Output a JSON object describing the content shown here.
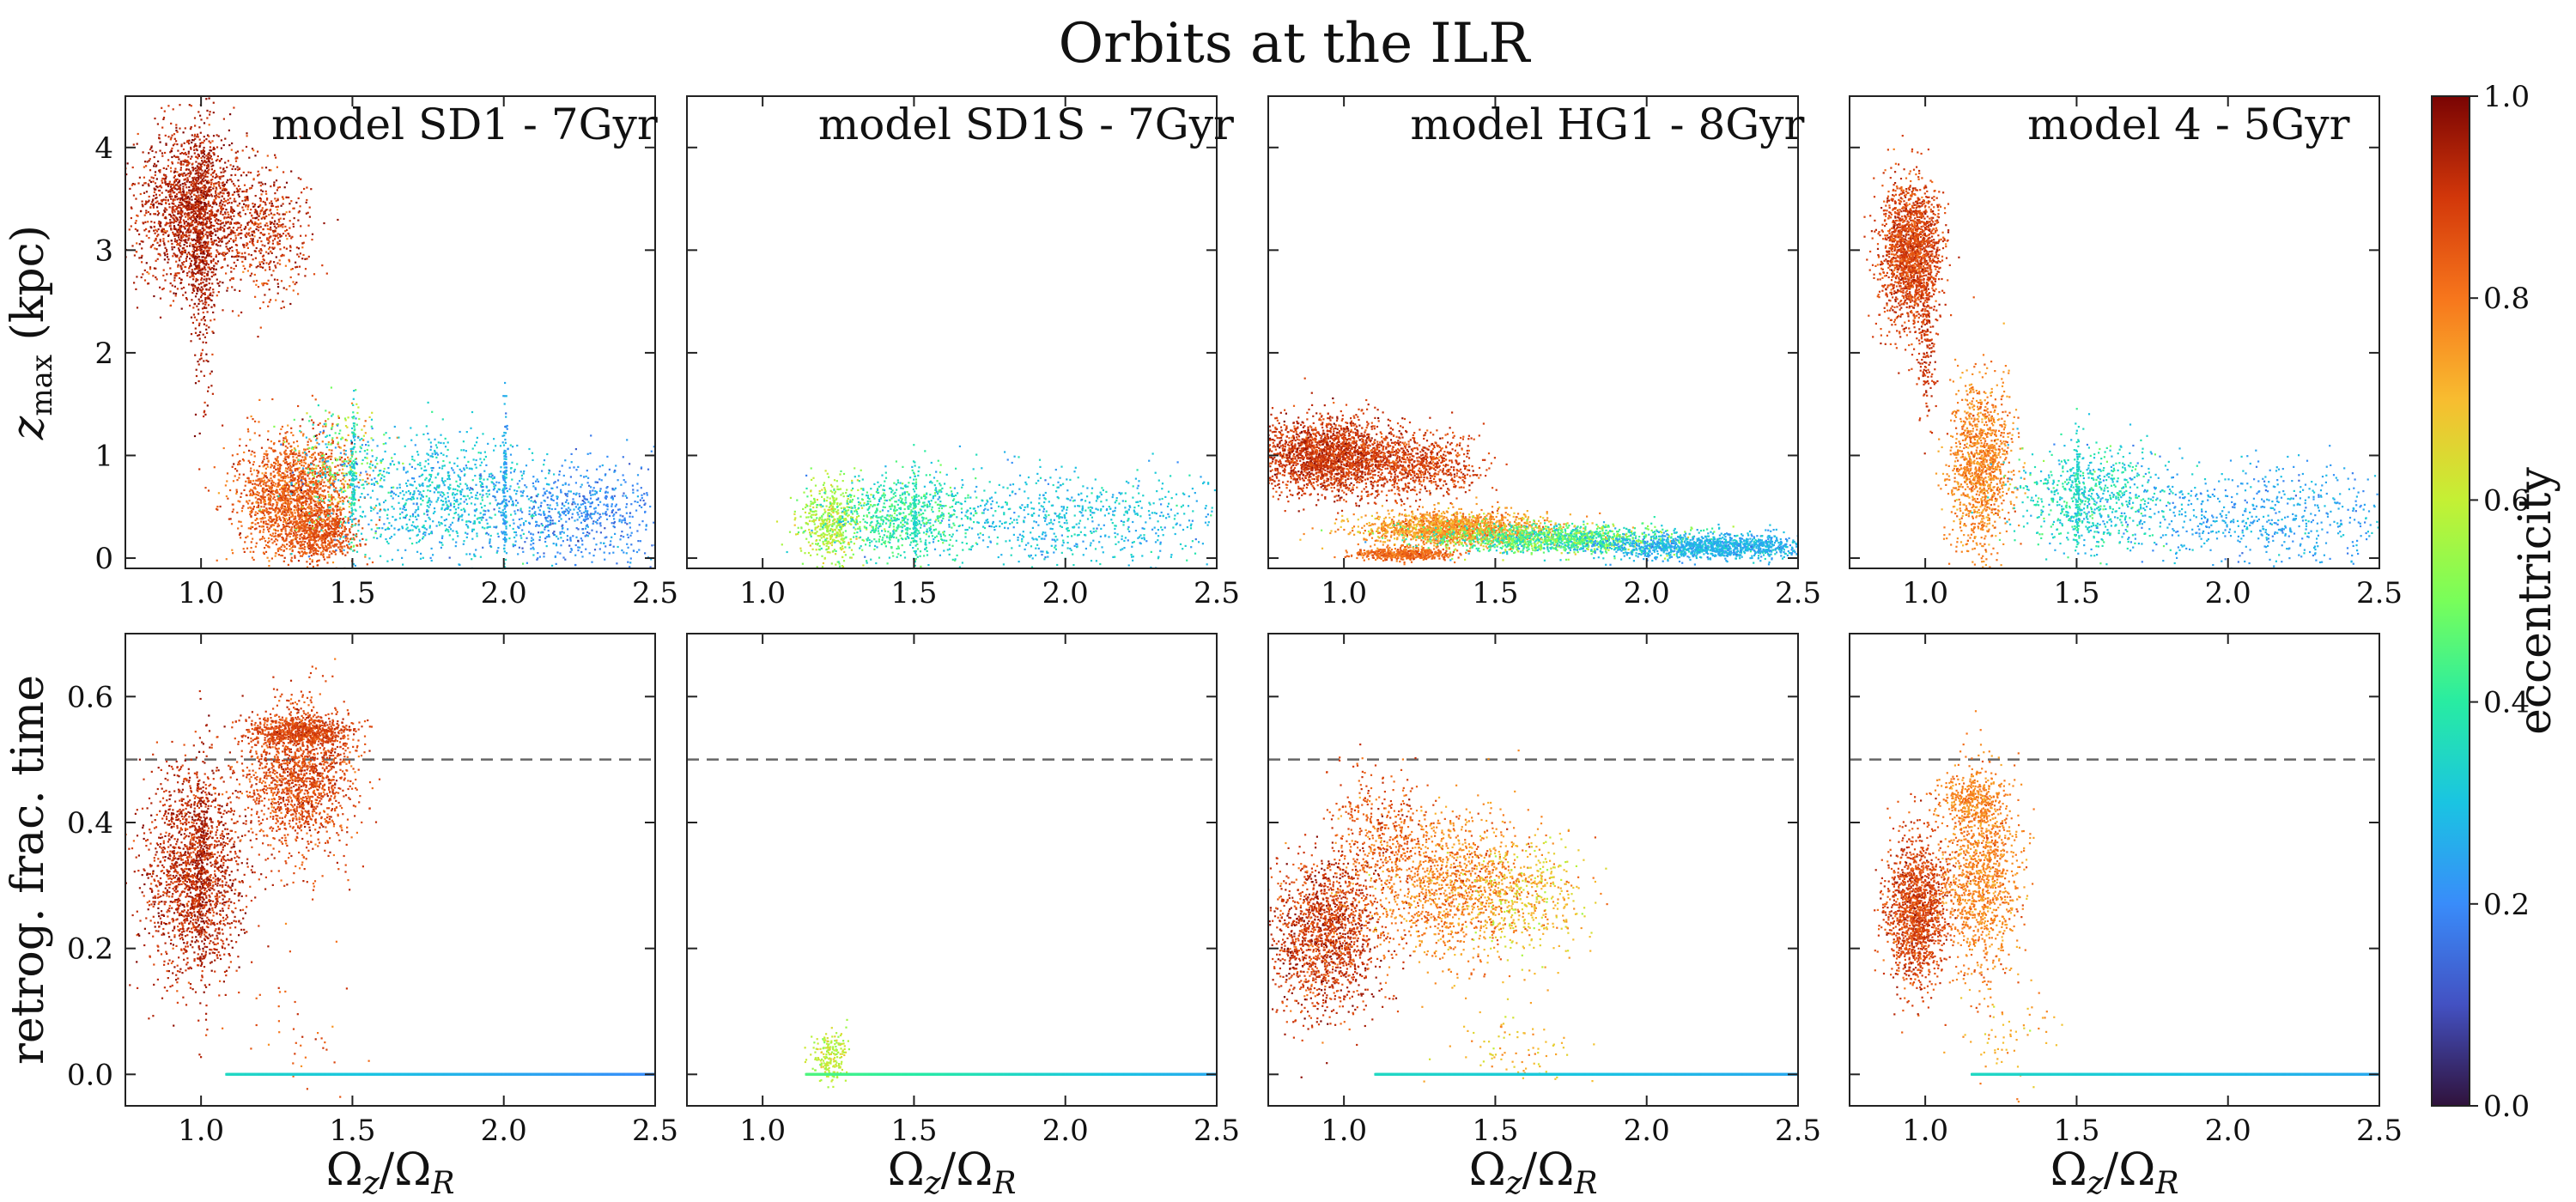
{
  "figure_title": "Orbits at the ILR",
  "colorbar": {
    "label": "eccentricity",
    "range": [
      0.0,
      1.0
    ],
    "ticks": [
      "0.0",
      "0.2",
      "0.4",
      "0.6",
      "0.8",
      "1.0"
    ],
    "colormap": "turbo"
  },
  "chart_data": [
    {
      "type": "scatter",
      "title": "model SD1 - 7Gyr",
      "row": "top",
      "xlabel": "",
      "ylabel": "z_max (kpc)",
      "xlim": [
        0.75,
        2.5
      ],
      "ylim": [
        -0.1,
        4.5
      ],
      "xticks": [
        "1.0",
        "1.5",
        "2.0",
        "2.5"
      ],
      "yticks": [
        "0",
        "1",
        "2",
        "3",
        "4"
      ],
      "clusters": [
        {
          "x": [
            0.97,
            0.09
          ],
          "y": [
            3.4,
            0.4
          ],
          "e": [
            0.93,
            0.04
          ],
          "n": 1800
        },
        {
          "x": [
            1.0,
            0.02
          ],
          "y": [
            3.0,
            0.6
          ],
          "e": [
            0.95,
            0.03
          ],
          "n": 400
        },
        {
          "x": [
            1.22,
            0.07
          ],
          "y": [
            3.2,
            0.3
          ],
          "e": [
            0.9,
            0.05
          ],
          "n": 500
        },
        {
          "x": [
            1.3,
            0.09
          ],
          "y": [
            0.6,
            0.3
          ],
          "e": [
            0.84,
            0.04
          ],
          "n": 1800
        },
        {
          "x": [
            1.4,
            0.06
          ],
          "y": [
            0.25,
            0.12
          ],
          "e": [
            0.86,
            0.03
          ],
          "n": 500
        },
        {
          "x": [
            1.45,
            0.08
          ],
          "y": [
            0.95,
            0.3
          ],
          "e": [
            0.5,
            0.2
          ],
          "n": 300
        },
        {
          "x": [
            1.8,
            0.18
          ],
          "y": [
            0.6,
            0.3
          ],
          "e": [
            0.3,
            0.05
          ],
          "n": 900
        },
        {
          "x": [
            2.25,
            0.17
          ],
          "y": [
            0.45,
            0.25
          ],
          "e": [
            0.2,
            0.04
          ],
          "n": 700
        },
        {
          "x": [
            1.5,
            0.004
          ],
          "y": [
            0.8,
            0.35
          ],
          "e": [
            0.35,
            0.05
          ],
          "n": 120
        },
        {
          "x": [
            2.0,
            0.004
          ],
          "y": [
            0.7,
            0.4
          ],
          "e": [
            0.25,
            0.04
          ],
          "n": 120
        }
      ]
    },
    {
      "type": "scatter",
      "title": "model SD1S - 7Gyr",
      "row": "top",
      "xlabel": "",
      "ylabel": "",
      "xlim": [
        0.75,
        2.5
      ],
      "ylim": [
        -0.1,
        4.5
      ],
      "xticks": [
        "1.0",
        "1.5",
        "2.0",
        "2.5"
      ],
      "yticks": [],
      "clusters": [
        {
          "x": [
            1.22,
            0.05
          ],
          "y": [
            0.35,
            0.2
          ],
          "e": [
            0.58,
            0.05
          ],
          "n": 500
        },
        {
          "x": [
            1.45,
            0.12
          ],
          "y": [
            0.4,
            0.2
          ],
          "e": [
            0.4,
            0.06
          ],
          "n": 700
        },
        {
          "x": [
            2.0,
            0.3
          ],
          "y": [
            0.4,
            0.25
          ],
          "e": [
            0.3,
            0.05
          ],
          "n": 800
        },
        {
          "x": [
            1.5,
            0.004
          ],
          "y": [
            0.5,
            0.25
          ],
          "e": [
            0.35,
            0.04
          ],
          "n": 100
        }
      ]
    },
    {
      "type": "scatter",
      "title": "model HG1 - 8Gyr",
      "row": "top",
      "xlabel": "",
      "ylabel": "",
      "xlim": [
        0.75,
        2.5
      ],
      "ylim": [
        -0.1,
        4.5
      ],
      "xticks": [
        "1.0",
        "1.5",
        "2.0",
        "2.5"
      ],
      "yticks": [],
      "clusters": [
        {
          "x": [
            0.95,
            0.12
          ],
          "y": [
            1.0,
            0.18
          ],
          "e": [
            0.9,
            0.04
          ],
          "n": 2200
        },
        {
          "x": [
            1.25,
            0.1
          ],
          "y": [
            0.9,
            0.15
          ],
          "e": [
            0.88,
            0.04
          ],
          "n": 700
        },
        {
          "x": [
            1.35,
            0.15
          ],
          "y": [
            0.3,
            0.08
          ],
          "e": [
            0.75,
            0.05
          ],
          "n": 1600
        },
        {
          "x": [
            1.7,
            0.2
          ],
          "y": [
            0.2,
            0.07
          ],
          "e": [
            0.45,
            0.1
          ],
          "n": 1400
        },
        {
          "x": [
            2.2,
            0.18
          ],
          "y": [
            0.12,
            0.06
          ],
          "e": [
            0.27,
            0.04
          ],
          "n": 1300
        },
        {
          "x": [
            1.2,
            0.08
          ],
          "y": [
            0.05,
            0.03
          ],
          "e": [
            0.82,
            0.03
          ],
          "n": 500
        }
      ]
    },
    {
      "type": "scatter",
      "title": "model 4 - 5Gyr",
      "row": "top",
      "xlabel": "",
      "ylabel": "",
      "xlim": [
        0.75,
        2.5
      ],
      "ylim": [
        -0.1,
        4.5
      ],
      "xticks": [
        "1.0",
        "1.5",
        "2.0",
        "2.5"
      ],
      "yticks": [],
      "clusters": [
        {
          "x": [
            0.95,
            0.05
          ],
          "y": [
            3.0,
            0.35
          ],
          "e": [
            0.88,
            0.04
          ],
          "n": 1800
        },
        {
          "x": [
            1.0,
            0.015
          ],
          "y": [
            2.2,
            0.5
          ],
          "e": [
            0.9,
            0.03
          ],
          "n": 200
        },
        {
          "x": [
            1.18,
            0.05
          ],
          "y": [
            0.9,
            0.4
          ],
          "e": [
            0.78,
            0.04
          ],
          "n": 1200
        },
        {
          "x": [
            1.55,
            0.12
          ],
          "y": [
            0.6,
            0.25
          ],
          "e": [
            0.35,
            0.06
          ],
          "n": 700
        },
        {
          "x": [
            2.1,
            0.25
          ],
          "y": [
            0.4,
            0.25
          ],
          "e": [
            0.25,
            0.04
          ],
          "n": 700
        },
        {
          "x": [
            1.5,
            0.004
          ],
          "y": [
            0.7,
            0.3
          ],
          "e": [
            0.35,
            0.04
          ],
          "n": 100
        }
      ]
    },
    {
      "type": "scatter",
      "title": "",
      "row": "bottom",
      "xlabel": "Ω_z/Ω_R",
      "ylabel": "retrog. frac. time",
      "xlim": [
        0.75,
        2.5
      ],
      "ylim": [
        -0.05,
        0.7
      ],
      "xticks": [
        "1.0",
        "1.5",
        "2.0",
        "2.5"
      ],
      "yticks": [
        "0.0",
        "0.2",
        "0.4",
        "0.6"
      ],
      "reference_line": 0.5,
      "clusters": [
        {
          "x": [
            0.97,
            0.08
          ],
          "y": [
            0.32,
            0.08
          ],
          "e": [
            0.92,
            0.04
          ],
          "n": 1800
        },
        {
          "x": [
            1.0,
            0.01
          ],
          "y": [
            0.32,
            0.1
          ],
          "e": [
            0.95,
            0.03
          ],
          "n": 200
        },
        {
          "x": [
            1.32,
            0.09
          ],
          "y": [
            0.47,
            0.06
          ],
          "e": [
            0.87,
            0.04
          ],
          "n": 1500
        },
        {
          "x": [
            1.32,
            0.08
          ],
          "y": [
            0.545,
            0.012
          ],
          "e": [
            0.88,
            0.03
          ],
          "n": 700
        },
        {
          "x": [
            1.3,
            0.1
          ],
          "y": [
            0.08,
            0.05
          ],
          "e": [
            0.85,
            0.05
          ],
          "n": 40
        }
      ],
      "baseline": {
        "xrange": [
          1.08,
          2.5
        ],
        "y": 0.0,
        "e_start": 0.35,
        "e_end": 0.2,
        "n": 900
      }
    },
    {
      "type": "scatter",
      "title": "",
      "row": "bottom",
      "xlabel": "Ω_z/Ω_R",
      "ylabel": "",
      "xlim": [
        0.75,
        2.5
      ],
      "ylim": [
        -0.05,
        0.7
      ],
      "xticks": [
        "1.0",
        "1.5",
        "2.0",
        "2.5"
      ],
      "yticks": [],
      "reference_line": 0.5,
      "clusters": [
        {
          "x": [
            1.22,
            0.03
          ],
          "y": [
            0.03,
            0.02
          ],
          "e": [
            0.6,
            0.04
          ],
          "n": 200
        }
      ],
      "baseline": {
        "xrange": [
          1.14,
          2.5
        ],
        "y": 0.0,
        "e_start": 0.45,
        "e_end": 0.25,
        "n": 900
      }
    },
    {
      "type": "scatter",
      "title": "",
      "row": "bottom",
      "xlabel": "Ω_z/Ω_R",
      "ylabel": "",
      "xlim": [
        0.75,
        2.5
      ],
      "ylim": [
        -0.05,
        0.7
      ],
      "xticks": [
        "1.0",
        "1.5",
        "2.0",
        "2.5"
      ],
      "yticks": [],
      "reference_line": 0.5,
      "clusters": [
        {
          "x": [
            0.93,
            0.09
          ],
          "y": [
            0.22,
            0.06
          ],
          "e": [
            0.9,
            0.05
          ],
          "n": 1600
        },
        {
          "x": [
            1.35,
            0.14
          ],
          "y": [
            0.3,
            0.06
          ],
          "e": [
            0.78,
            0.05
          ],
          "n": 1300
        },
        {
          "x": [
            1.6,
            0.1
          ],
          "y": [
            0.28,
            0.05
          ],
          "e": [
            0.68,
            0.06
          ],
          "n": 400
        },
        {
          "x": [
            1.1,
            0.08
          ],
          "y": [
            0.38,
            0.05
          ],
          "e": [
            0.85,
            0.05
          ],
          "n": 400
        },
        {
          "x": [
            1.55,
            0.1
          ],
          "y": [
            0.04,
            0.03
          ],
          "e": [
            0.7,
            0.05
          ],
          "n": 80
        }
      ],
      "baseline": {
        "xrange": [
          1.1,
          2.5
        ],
        "y": 0.0,
        "e_start": 0.35,
        "e_end": 0.25,
        "n": 900
      }
    },
    {
      "type": "scatter",
      "title": "",
      "row": "bottom",
      "xlabel": "Ω_z/Ω_R",
      "ylabel": "",
      "xlim": [
        0.75,
        2.5
      ],
      "ylim": [
        -0.05,
        0.7
      ],
      "xticks": [
        "1.0",
        "1.5",
        "2.0",
        "2.5"
      ],
      "yticks": [],
      "reference_line": 0.5,
      "clusters": [
        {
          "x": [
            0.97,
            0.05
          ],
          "y": [
            0.26,
            0.06
          ],
          "e": [
            0.88,
            0.04
          ],
          "n": 1500
        },
        {
          "x": [
            1.18,
            0.06
          ],
          "y": [
            0.32,
            0.08
          ],
          "e": [
            0.78,
            0.04
          ],
          "n": 1200
        },
        {
          "x": [
            1.15,
            0.05
          ],
          "y": [
            0.44,
            0.02
          ],
          "e": [
            0.78,
            0.03
          ],
          "n": 300
        },
        {
          "x": [
            1.3,
            0.08
          ],
          "y": [
            0.06,
            0.04
          ],
          "e": [
            0.72,
            0.05
          ],
          "n": 60
        }
      ],
      "baseline": {
        "xrange": [
          1.15,
          2.5
        ],
        "y": 0.0,
        "e_start": 0.35,
        "e_end": 0.25,
        "n": 900
      }
    }
  ]
}
